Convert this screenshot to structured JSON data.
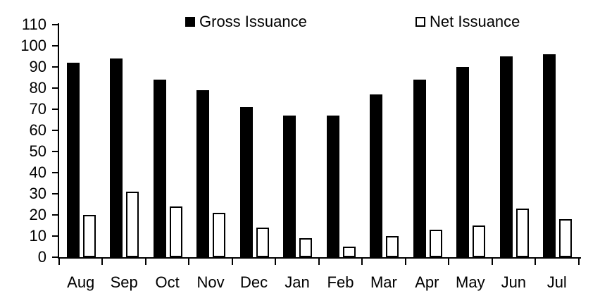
{
  "chart_data": {
    "type": "bar",
    "title": "",
    "categories": [
      "Aug",
      "Sep",
      "Oct",
      "Nov",
      "Dec",
      "Jan",
      "Feb",
      "Mar",
      "Apr",
      "May",
      "Jun",
      "Jul"
    ],
    "series": [
      {
        "name": "Gross Issuance",
        "fill": "#000000",
        "style": "solid",
        "values": [
          92,
          94,
          84,
          79,
          71,
          67,
          67,
          77,
          84,
          90,
          95,
          96
        ]
      },
      {
        "name": "Net Issuance",
        "fill": "#ffffff",
        "border": "#000000",
        "style": "outline",
        "values": [
          20,
          31,
          24,
          21,
          14,
          9,
          5,
          10,
          13,
          15,
          23,
          18
        ]
      }
    ],
    "xlabel": "",
    "ylabel": "",
    "ylim": [
      0,
      110
    ],
    "ytick_step": 10,
    "y_tick_labels": [
      "0",
      "10",
      "20",
      "30",
      "40",
      "50",
      "60",
      "70",
      "80",
      "90",
      "100",
      "110"
    ],
    "grid": false,
    "legend_position": "top-center",
    "colors": {
      "axis": "#000000",
      "background": "#ffffff",
      "text": "#000000"
    }
  }
}
